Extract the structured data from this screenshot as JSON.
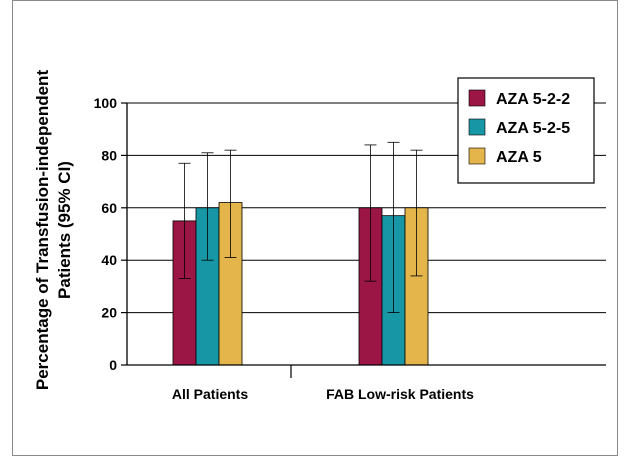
{
  "chart_data": {
    "type": "bar",
    "title": "",
    "xlabel": "",
    "ylabel_lines": [
      "Percentage of Transfusion-independent",
      "Patients (95% CI)"
    ],
    "ylim": [
      0,
      100
    ],
    "yticks": [
      0,
      20,
      40,
      60,
      80,
      100
    ],
    "grid": true,
    "legend_position": "top-right",
    "categories": [
      "All Patients",
      "FAB Low-risk Patients"
    ],
    "series": [
      {
        "name": "AZA 5-2-2",
        "color": "#9b1545",
        "values": [
          55,
          60
        ],
        "ci_low": [
          33,
          32
        ],
        "ci_high": [
          77,
          84
        ]
      },
      {
        "name": "AZA 5-2-5",
        "color": "#1797a6",
        "values": [
          60,
          57
        ],
        "ci_low": [
          40,
          20
        ],
        "ci_high": [
          81,
          85
        ]
      },
      {
        "name": "AZA 5",
        "color": "#e3b54a",
        "values": [
          62,
          60
        ],
        "ci_low": [
          41,
          34
        ],
        "ci_high": [
          82,
          82
        ]
      }
    ]
  }
}
